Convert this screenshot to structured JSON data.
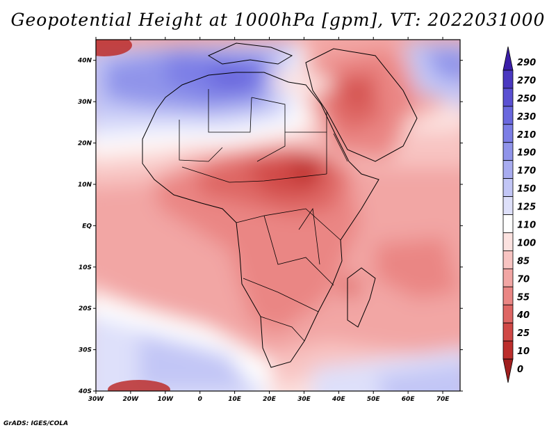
{
  "title": "Geopotential Height at 1000hPa [gpm], VT: 2022031000",
  "credit": "GrADS: IGES/COLA",
  "map": {
    "lat_labels": [
      "40N",
      "30N",
      "20N",
      "10N",
      "EQ",
      "10S",
      "20S",
      "30S",
      "40S"
    ],
    "lon_labels": [
      "30W",
      "20W",
      "10W",
      "0",
      "10E",
      "20E",
      "30E",
      "40E",
      "50E",
      "60E",
      "70E"
    ],
    "lat_range": [
      -40,
      45
    ],
    "lon_range": [
      -30,
      75
    ]
  },
  "colorbar": {
    "levels": [
      "290",
      "270",
      "250",
      "230",
      "210",
      "190",
      "170",
      "150",
      "125",
      "110",
      "100",
      "85",
      "70",
      "55",
      "40",
      "25",
      "10",
      "0"
    ],
    "colors": [
      "#3a1ea8",
      "#4a38c0",
      "#5a50d2",
      "#6a68de",
      "#7c7ee6",
      "#9094ea",
      "#a8acf0",
      "#c2c6f6",
      "#dee0fa",
      "#ffffff",
      "#fce2e0",
      "#f8c4c2",
      "#f2a6a4",
      "#ea8684",
      "#de6664",
      "#d04846",
      "#bc2e2c",
      "#a01e1e"
    ]
  }
}
